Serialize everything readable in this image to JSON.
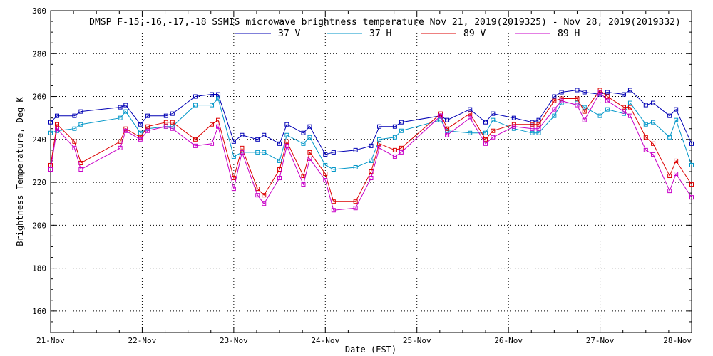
{
  "chart_data": {
    "type": "line",
    "title": "DMSP F-15,-16,-17,-18 SSMIS microwave brightness temperature Nov 21, 2019(2019325) - Nov 28, 2019(2019332)",
    "xlabel": "Date (EST)",
    "ylabel": "Brightness Temperature, Deg K",
    "xlim": [
      0,
      7
    ],
    "ylim": [
      150,
      300
    ],
    "grid": true,
    "x_ticks": [
      {
        "value": 0,
        "label": "21-Nov"
      },
      {
        "value": 1,
        "label": "22-Nov"
      },
      {
        "value": 2,
        "label": "23-Nov"
      },
      {
        "value": 3,
        "label": "24-Nov"
      },
      {
        "value": 4,
        "label": "25-Nov"
      },
      {
        "value": 5,
        "label": "26-Nov"
      },
      {
        "value": 6,
        "label": "27-Nov"
      },
      {
        "value": 7,
        "label": "28-Nov"
      }
    ],
    "y_ticks": [
      160,
      180,
      200,
      220,
      240,
      260,
      280,
      300
    ],
    "legend_position": "top-center",
    "series": [
      {
        "name": "37 V",
        "color": "#0000b4",
        "points": [
          [
            0.0,
            248
          ],
          [
            0.07,
            251
          ],
          [
            0.26,
            251
          ],
          [
            0.33,
            253
          ],
          [
            0.76,
            255
          ],
          [
            0.82,
            256
          ],
          [
            0.98,
            247
          ],
          [
            1.06,
            251
          ],
          [
            1.26,
            251
          ],
          [
            1.33,
            252
          ],
          [
            1.58,
            260
          ],
          [
            1.76,
            261
          ],
          [
            1.83,
            261
          ],
          [
            2.0,
            239
          ],
          [
            2.09,
            242
          ],
          [
            2.26,
            240
          ],
          [
            2.33,
            242
          ],
          [
            2.5,
            238
          ],
          [
            2.58,
            247
          ],
          [
            2.76,
            243
          ],
          [
            2.83,
            246
          ],
          [
            3.0,
            233
          ],
          [
            3.09,
            234
          ],
          [
            3.33,
            235
          ],
          [
            3.5,
            237
          ],
          [
            3.59,
            246
          ],
          [
            3.76,
            246
          ],
          [
            3.83,
            248
          ],
          [
            4.26,
            251
          ],
          [
            4.33,
            249
          ],
          [
            4.58,
            254
          ],
          [
            4.75,
            248
          ],
          [
            4.83,
            252
          ],
          [
            5.06,
            250
          ],
          [
            5.26,
            248
          ],
          [
            5.33,
            249
          ],
          [
            5.5,
            260
          ],
          [
            5.58,
            262
          ],
          [
            5.75,
            263
          ],
          [
            5.83,
            262
          ],
          [
            6.0,
            261
          ],
          [
            6.08,
            262
          ],
          [
            6.26,
            261
          ],
          [
            6.33,
            263
          ],
          [
            6.5,
            256
          ],
          [
            6.58,
            257
          ],
          [
            6.76,
            251
          ],
          [
            6.83,
            254
          ],
          [
            7.0,
            238
          ]
        ]
      },
      {
        "name": "37 H",
        "color": "#0096c8",
        "points": [
          [
            0.0,
            243
          ],
          [
            0.07,
            244
          ],
          [
            0.26,
            245
          ],
          [
            0.33,
            247
          ],
          [
            0.76,
            250
          ],
          [
            0.82,
            253
          ],
          [
            0.98,
            243
          ],
          [
            1.06,
            245
          ],
          [
            1.26,
            246
          ],
          [
            1.33,
            246
          ],
          [
            1.58,
            256
          ],
          [
            1.76,
            256
          ],
          [
            1.83,
            259
          ],
          [
            2.0,
            232
          ],
          [
            2.09,
            234
          ],
          [
            2.26,
            234
          ],
          [
            2.33,
            234
          ],
          [
            2.5,
            230
          ],
          [
            2.58,
            242
          ],
          [
            2.76,
            238
          ],
          [
            2.83,
            241
          ],
          [
            3.0,
            228
          ],
          [
            3.09,
            226
          ],
          [
            3.33,
            227
          ],
          [
            3.5,
            230
          ],
          [
            3.59,
            240
          ],
          [
            3.76,
            241
          ],
          [
            3.83,
            244
          ],
          [
            4.26,
            249
          ],
          [
            4.33,
            244
          ],
          [
            4.58,
            243
          ],
          [
            4.75,
            243
          ],
          [
            4.83,
            249
          ],
          [
            5.06,
            245
          ],
          [
            5.26,
            243
          ],
          [
            5.33,
            243
          ],
          [
            5.5,
            251
          ],
          [
            5.58,
            257
          ],
          [
            5.75,
            257
          ],
          [
            5.83,
            255
          ],
          [
            6.0,
            251
          ],
          [
            6.08,
            254
          ],
          [
            6.26,
            252
          ],
          [
            6.33,
            257
          ],
          [
            6.5,
            247
          ],
          [
            6.58,
            248
          ],
          [
            6.76,
            241
          ],
          [
            6.83,
            249
          ],
          [
            7.0,
            228
          ]
        ]
      },
      {
        "name": "89 V",
        "color": "#dc0000",
        "points": [
          [
            0.0,
            228
          ],
          [
            0.07,
            247
          ],
          [
            0.26,
            239
          ],
          [
            0.33,
            229
          ],
          [
            0.76,
            239
          ],
          [
            0.82,
            245
          ],
          [
            0.98,
            241
          ],
          [
            1.06,
            246
          ],
          [
            1.26,
            248
          ],
          [
            1.33,
            248
          ],
          [
            1.58,
            240
          ],
          [
            1.76,
            247
          ],
          [
            1.83,
            249
          ],
          [
            2.0,
            222
          ],
          [
            2.09,
            236
          ],
          [
            2.26,
            217
          ],
          [
            2.33,
            214
          ],
          [
            2.5,
            226
          ],
          [
            2.58,
            239
          ],
          [
            2.76,
            223
          ],
          [
            2.83,
            234
          ],
          [
            3.0,
            224
          ],
          [
            3.09,
            211
          ],
          [
            3.33,
            211
          ],
          [
            3.5,
            225
          ],
          [
            3.59,
            238
          ],
          [
            3.76,
            235
          ],
          [
            3.83,
            236
          ],
          [
            4.26,
            252
          ],
          [
            4.33,
            245
          ],
          [
            4.58,
            252
          ],
          [
            4.75,
            240
          ],
          [
            4.83,
            244
          ],
          [
            5.06,
            247
          ],
          [
            5.26,
            247
          ],
          [
            5.33,
            247
          ],
          [
            5.5,
            258
          ],
          [
            5.58,
            259
          ],
          [
            5.75,
            259
          ],
          [
            5.83,
            253
          ],
          [
            6.0,
            263
          ],
          [
            6.08,
            260
          ],
          [
            6.26,
            255
          ],
          [
            6.33,
            255
          ],
          [
            6.5,
            241
          ],
          [
            6.58,
            238
          ],
          [
            6.76,
            223
          ],
          [
            6.83,
            230
          ],
          [
            7.0,
            219
          ]
        ]
      },
      {
        "name": "89 H",
        "color": "#c800c8",
        "points": [
          [
            0.0,
            226
          ],
          [
            0.07,
            245
          ],
          [
            0.26,
            236
          ],
          [
            0.33,
            226
          ],
          [
            0.76,
            236
          ],
          [
            0.82,
            244
          ],
          [
            0.98,
            240
          ],
          [
            1.06,
            244
          ],
          [
            1.26,
            246
          ],
          [
            1.33,
            245
          ],
          [
            1.58,
            237
          ],
          [
            1.76,
            238
          ],
          [
            1.83,
            246
          ],
          [
            2.0,
            217
          ],
          [
            2.09,
            234
          ],
          [
            2.26,
            214
          ],
          [
            2.33,
            210
          ],
          [
            2.5,
            222
          ],
          [
            2.58,
            237
          ],
          [
            2.76,
            219
          ],
          [
            2.83,
            231
          ],
          [
            3.0,
            221
          ],
          [
            3.09,
            207
          ],
          [
            3.33,
            208
          ],
          [
            3.5,
            222
          ],
          [
            3.59,
            236
          ],
          [
            3.76,
            232
          ],
          [
            3.83,
            234
          ],
          [
            4.26,
            251
          ],
          [
            4.33,
            242
          ],
          [
            4.58,
            250
          ],
          [
            4.75,
            238
          ],
          [
            4.83,
            241
          ],
          [
            5.06,
            246
          ],
          [
            5.26,
            245
          ],
          [
            5.33,
            245
          ],
          [
            5.5,
            254
          ],
          [
            5.58,
            258
          ],
          [
            5.75,
            256
          ],
          [
            5.83,
            249
          ],
          [
            6.0,
            262
          ],
          [
            6.08,
            258
          ],
          [
            6.26,
            253
          ],
          [
            6.33,
            251
          ],
          [
            6.5,
            235
          ],
          [
            6.58,
            233
          ],
          [
            6.76,
            216
          ],
          [
            6.83,
            224
          ],
          [
            7.0,
            213
          ]
        ]
      }
    ]
  }
}
